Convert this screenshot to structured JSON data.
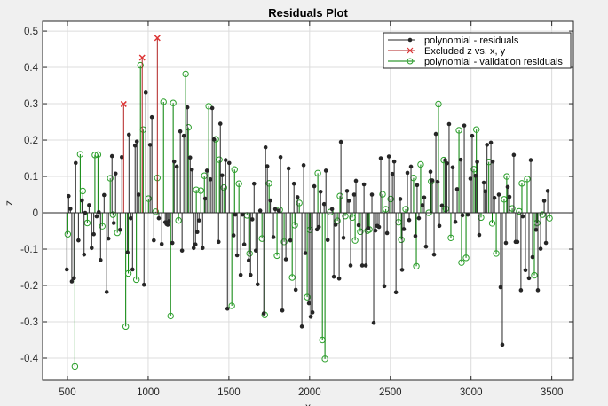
{
  "chart_data": {
    "type": "stem",
    "title": "Residuals Plot",
    "xlabel": "x",
    "ylabel": "z",
    "xlim": [
      346,
      3634
    ],
    "ylim": [
      -0.461,
      0.527
    ],
    "xticks": [
      500,
      1000,
      1500,
      2000,
      2500,
      3000,
      3500
    ],
    "yticks": [
      -0.4,
      -0.3,
      -0.2,
      -0.1,
      0,
      0.1,
      0.2,
      0.3,
      0.4,
      0.5
    ],
    "ytick_labels": [
      "-0.4",
      "-0.3",
      "-0.2",
      "-0.1",
      "0",
      "0.1",
      "0.2",
      "0.3",
      "0.4",
      "0.5"
    ],
    "grid": true,
    "legend_position": "top-right",
    "series": [
      {
        "name": "polynomial - residuals",
        "color": "#262626",
        "marker": "filled-dot",
        "points": [
          [
            496,
            -0.156
          ],
          [
            507,
            0.046
          ],
          [
            518,
            0.011
          ],
          [
            527,
            -0.189
          ],
          [
            540,
            -0.18
          ],
          [
            551,
            0.137
          ],
          [
            568,
            -0.076
          ],
          [
            590,
            0.034
          ],
          [
            603,
            -0.115
          ],
          [
            610,
            0.0
          ],
          [
            634,
            0.021
          ],
          [
            650,
            -0.097
          ],
          [
            663,
            -0.059
          ],
          [
            681,
            -0.01
          ],
          [
            694,
            0.002
          ],
          [
            705,
            -0.13
          ],
          [
            727,
            0.049
          ],
          [
            743,
            -0.218
          ],
          [
            754,
            -0.071
          ],
          [
            776,
            0.156
          ],
          [
            787,
            -0.028
          ],
          [
            798,
            0.108
          ],
          [
            826,
            -0.047
          ],
          [
            837,
            0.153
          ],
          [
            872,
            -0.109
          ],
          [
            881,
            0.215
          ],
          [
            892,
            -0.015
          ],
          [
            903,
            -0.156
          ],
          [
            919,
            0.185
          ],
          [
            930,
            0.196
          ],
          [
            941,
            0.05
          ],
          [
            974,
            -0.198
          ],
          [
            985,
            0.331
          ],
          [
            1012,
            0.187
          ],
          [
            1023,
            0.263
          ],
          [
            1035,
            -0.076
          ],
          [
            1066,
            -0.015
          ],
          [
            1084,
            -0.086
          ],
          [
            1106,
            -0.026
          ],
          [
            1114,
            -0.031
          ],
          [
            1121,
            -0.033
          ],
          [
            1128,
            -0.023
          ],
          [
            1150,
            -0.083
          ],
          [
            1161,
            0.141
          ],
          [
            1177,
            0.127
          ],
          [
            1199,
            0.224
          ],
          [
            1210,
            -0.104
          ],
          [
            1221,
            0.212
          ],
          [
            1243,
            0.29
          ],
          [
            1260,
            0.152
          ],
          [
            1271,
            0.119
          ],
          [
            1282,
            -0.097
          ],
          [
            1293,
            -0.087
          ],
          [
            1304,
            -0.053
          ],
          [
            1315,
            -0.021
          ],
          [
            1337,
            -0.097
          ],
          [
            1353,
            0.039
          ],
          [
            1364,
            0.116
          ],
          [
            1386,
            0.092
          ],
          [
            1397,
            0.288
          ],
          [
            1408,
            0.202
          ],
          [
            1436,
            -0.08
          ],
          [
            1447,
            0.245
          ],
          [
            1458,
            0.103
          ],
          [
            1480,
            0.145
          ],
          [
            1491,
            -0.264
          ],
          [
            1502,
            0.137
          ],
          [
            1529,
            -0.062
          ],
          [
            1540,
            -0.005
          ],
          [
            1551,
            -0.117
          ],
          [
            1573,
            -0.171
          ],
          [
            1584,
            -0.005
          ],
          [
            1595,
            -0.087
          ],
          [
            1623,
            -0.131
          ],
          [
            1634,
            -0.171
          ],
          [
            1645,
            -0.018
          ],
          [
            1656,
            0.08
          ],
          [
            1667,
            -0.104
          ],
          [
            1678,
            -0.197
          ],
          [
            1694,
            0.006
          ],
          [
            1716,
            -0.277
          ],
          [
            1727,
            0.18
          ],
          [
            1738,
            0.128
          ],
          [
            1757,
            0.034
          ],
          [
            1776,
            -0.067
          ],
          [
            1787,
            0.01
          ],
          [
            1809,
            0.006
          ],
          [
            1820,
            0.153
          ],
          [
            1831,
            -0.269
          ],
          [
            1853,
            -0.128
          ],
          [
            1870,
            0.122
          ],
          [
            1881,
            -0.076
          ],
          [
            1903,
            0.08
          ],
          [
            1914,
            -0.212
          ],
          [
            1925,
            0.043
          ],
          [
            1952,
            -0.313
          ],
          [
            1963,
            0.131
          ],
          [
            1974,
            -0.111
          ],
          [
            1996,
            -0.249
          ],
          [
            2007,
            -0.286
          ],
          [
            2018,
            -0.274
          ],
          [
            2029,
            0.073
          ],
          [
            2046,
            -0.046
          ],
          [
            2057,
            -0.039
          ],
          [
            2068,
            0.058
          ],
          [
            2090,
            0.024
          ],
          [
            2101,
            0.116
          ],
          [
            2112,
            -0.075
          ],
          [
            2139,
            0.01
          ],
          [
            2150,
            -0.176
          ],
          [
            2161,
            -0.033
          ],
          [
            2183,
            -0.181
          ],
          [
            2194,
            0.195
          ],
          [
            2210,
            -0.069
          ],
          [
            2232,
            0.06
          ],
          [
            2243,
            0.033
          ],
          [
            2254,
            -0.145
          ],
          [
            2276,
            0.05
          ],
          [
            2287,
            0.088
          ],
          [
            2304,
            -0.034
          ],
          [
            2326,
            -0.145
          ],
          [
            2337,
            0.078
          ],
          [
            2348,
            -0.145
          ],
          [
            2364,
            -0.042
          ],
          [
            2386,
            0.05
          ],
          [
            2397,
            -0.303
          ],
          [
            2408,
            -0.049
          ],
          [
            2419,
            -0.036
          ],
          [
            2430,
            -0.039
          ],
          [
            2441,
            0.15
          ],
          [
            2463,
            -0.202
          ],
          [
            2480,
            -0.056
          ],
          [
            2491,
            0.155
          ],
          [
            2513,
            0.107
          ],
          [
            2524,
            0.141
          ],
          [
            2535,
            -0.219
          ],
          [
            2562,
            0.038
          ],
          [
            2573,
            -0.157
          ],
          [
            2584,
            -0.045
          ],
          [
            2606,
            0.11
          ],
          [
            2617,
            -0.02
          ],
          [
            2628,
            0.127
          ],
          [
            2655,
            -0.064
          ],
          [
            2666,
            0.076
          ],
          [
            2677,
            -0.015
          ],
          [
            2699,
            0.021
          ],
          [
            2710,
            0.042
          ],
          [
            2721,
            -0.093
          ],
          [
            2749,
            0.113
          ],
          [
            2760,
            0.089
          ],
          [
            2771,
            -0.115
          ],
          [
            2782,
            0.217
          ],
          [
            2793,
            0.085
          ],
          [
            2804,
            -0.036
          ],
          [
            2820,
            0.02
          ],
          [
            2840,
            0.145
          ],
          [
            2850,
            0.136
          ],
          [
            2864,
            0.244
          ],
          [
            2886,
            0.125
          ],
          [
            2903,
            -0.025
          ],
          [
            2914,
            0.065
          ],
          [
            2936,
            0.146
          ],
          [
            2947,
            -0.007
          ],
          [
            2958,
            0.24
          ],
          [
            2980,
            -0.005
          ],
          [
            2996,
            0.094
          ],
          [
            3007,
            0.212
          ],
          [
            3027,
            0.102
          ],
          [
            3038,
            0.14
          ],
          [
            3051,
            -0.061
          ],
          [
            3079,
            0.083
          ],
          [
            3088,
            0.059
          ],
          [
            3099,
            0.187
          ],
          [
            3123,
            0.193
          ],
          [
            3134,
            0.141
          ],
          [
            3145,
            0.041
          ],
          [
            3172,
            0.05
          ],
          [
            3183,
            -0.205
          ],
          [
            3194,
            -0.363
          ],
          [
            3216,
            -0.083
          ],
          [
            3227,
            0.071
          ],
          [
            3238,
            0.044
          ],
          [
            3265,
            0.159
          ],
          [
            3276,
            -0.08
          ],
          [
            3287,
            -0.08
          ],
          [
            3309,
            -0.213
          ],
          [
            3320,
            -0.01
          ],
          [
            3337,
            -0.158
          ],
          [
            3359,
            -0.18
          ],
          [
            3370,
            0.145
          ],
          [
            3381,
            -0.122
          ],
          [
            3403,
            -0.047
          ],
          [
            3414,
            -0.213
          ],
          [
            3431,
            -0.099
          ],
          [
            3453,
            0.033
          ],
          [
            3464,
            -0.083
          ],
          [
            3475,
            0.06
          ]
        ]
      },
      {
        "name": "Excluded z vs. x, y",
        "color": "#b22222",
        "marker": "x",
        "points": [
          [
            848,
            0.299
          ],
          [
            963,
            0.427
          ],
          [
            1057,
            0.481
          ]
        ]
      },
      {
        "name": "polynomial - validation residuals",
        "color": "#008000",
        "marker": "open-circle",
        "points": [
          [
            502,
            -0.059
          ],
          [
            546,
            -0.423
          ],
          [
            579,
            0.161
          ],
          [
            595,
            0.06
          ],
          [
            623,
            -0.028
          ],
          [
            670,
            0.159
          ],
          [
            689,
            0.16
          ],
          [
            716,
            -0.037
          ],
          [
            765,
            0.095
          ],
          [
            782,
            -0.005
          ],
          [
            809,
            -0.055
          ],
          [
            861,
            -0.313
          ],
          [
            877,
            -0.167
          ],
          [
            927,
            -0.184
          ],
          [
            952,
            0.406
          ],
          [
            969,
            0.229
          ],
          [
            1002,
            0.039
          ],
          [
            1046,
            0.003
          ],
          [
            1057,
            0.096
          ],
          [
            1095,
            0.305
          ],
          [
            1139,
            -0.284
          ],
          [
            1155,
            0.302
          ],
          [
            1188,
            -0.021
          ],
          [
            1232,
            0.382
          ],
          [
            1249,
            0.235
          ],
          [
            1298,
            0.063
          ],
          [
            1326,
            0.061
          ],
          [
            1348,
            0.102
          ],
          [
            1375,
            0.293
          ],
          [
            1419,
            0.202
          ],
          [
            1441,
            0.146
          ],
          [
            1469,
            0.069
          ],
          [
            1518,
            -0.256
          ],
          [
            1535,
            0.119
          ],
          [
            1562,
            0.08
          ],
          [
            1612,
            -0.007
          ],
          [
            1628,
            -0.112
          ],
          [
            1705,
            -0.071
          ],
          [
            1722,
            -0.281
          ],
          [
            1749,
            0.081
          ],
          [
            1798,
            -0.118
          ],
          [
            1815,
            0.008
          ],
          [
            1842,
            -0.08
          ],
          [
            1892,
            -0.178
          ],
          [
            1908,
            -0.034
          ],
          [
            1936,
            0.027
          ],
          [
            1985,
            -0.232
          ],
          [
            2002,
            -0.047
          ],
          [
            2051,
            0.109
          ],
          [
            2079,
            -0.35
          ],
          [
            2095,
            -0.402
          ],
          [
            2128,
            0.002
          ],
          [
            2172,
            -0.022
          ],
          [
            2188,
            0.046
          ],
          [
            2221,
            -0.009
          ],
          [
            2265,
            -0.013
          ],
          [
            2282,
            -0.076
          ],
          [
            2314,
            -0.052
          ],
          [
            2359,
            -0.049
          ],
          [
            2370,
            -0.046
          ],
          [
            2452,
            0.051
          ],
          [
            2472,
            0.01
          ],
          [
            2502,
            0.038
          ],
          [
            2551,
            -0.026
          ],
          [
            2568,
            -0.074
          ],
          [
            2595,
            0.01
          ],
          [
            2644,
            0.096
          ],
          [
            2661,
            -0.147
          ],
          [
            2688,
            0.133
          ],
          [
            2738,
            0.0
          ],
          [
            2753,
            0.086
          ],
          [
            2798,
            0.299
          ],
          [
            2831,
            0.145
          ],
          [
            2844,
            0.011
          ],
          [
            2875,
            -0.069
          ],
          [
            2925,
            0.227
          ],
          [
            2941,
            -0.137
          ],
          [
            2969,
            -0.124
          ],
          [
            3018,
            0.12
          ],
          [
            3033,
            0.229
          ],
          [
            3062,
            -0.013
          ],
          [
            3110,
            0.14
          ],
          [
            3131,
            -0.029
          ],
          [
            3156,
            -0.112
          ],
          [
            3205,
            0.037
          ],
          [
            3221,
            0.1
          ],
          [
            3255,
            0.012
          ],
          [
            3298,
            0.004
          ],
          [
            3315,
            0.081
          ],
          [
            3348,
            0.093
          ],
          [
            3392,
            -0.172
          ],
          [
            3409,
            -0.028
          ],
          [
            3442,
            -0.005
          ],
          [
            3486,
            -0.015
          ]
        ]
      }
    ]
  }
}
